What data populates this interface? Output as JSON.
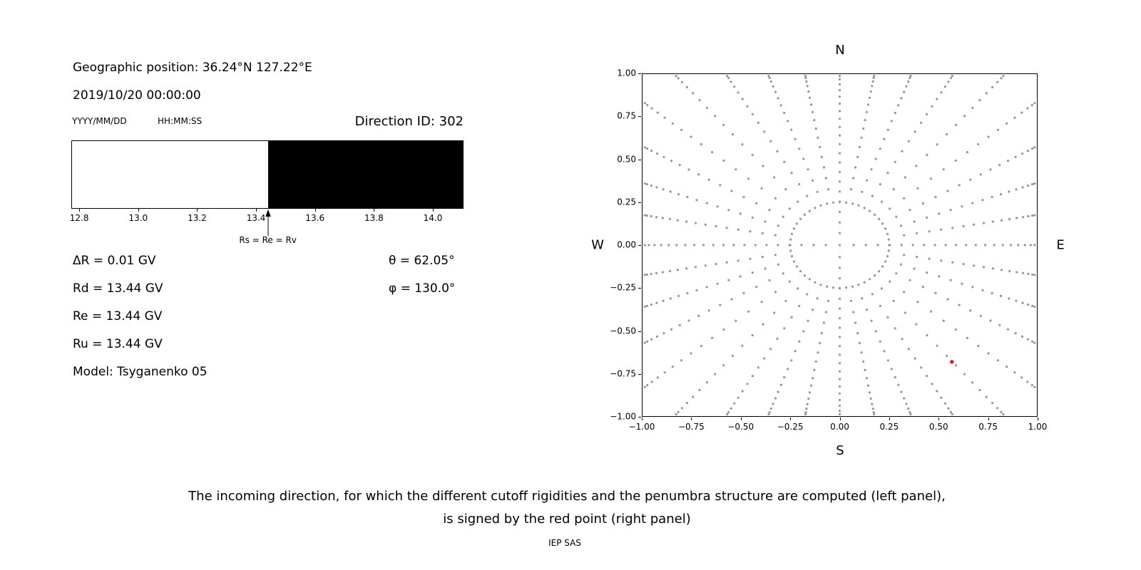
{
  "left_panel": {
    "geo_position": "Geographic position: 36.24°N 127.22°E",
    "datetime": "2019/10/20 00:00:00",
    "date_format_label": "YYYY/MM/DD",
    "time_format_label": "HH:MM:SS",
    "direction_id": "Direction ID: 302",
    "info_left": [
      "ΔR = 0.01 GV",
      "Rd = 13.44 GV",
      "Re = 13.44 GV",
      "Ru = 13.44 GV",
      "Model: Tsyganenko 05"
    ],
    "info_right": [
      "θ = 62.05°",
      "φ = 130.0°"
    ]
  },
  "caption": {
    "line1": "The incoming direction, for which the different cutoff rigidities and the penumbra structure are computed (left panel),",
    "line2": "is signed by the red point (right panel)",
    "credit": "IEP SAS"
  },
  "chart_data": [
    {
      "type": "bar",
      "x_range": [
        12.773,
        14.104
      ],
      "x_ticks": [
        12.8,
        13.0,
        13.2,
        13.4,
        13.6,
        13.8,
        14.0
      ],
      "segments": [
        {
          "start": 12.773,
          "end": 13.44,
          "color": "#ffffff"
        },
        {
          "start": 13.44,
          "end": 14.104,
          "color": "#000000"
        }
      ],
      "marker": {
        "x": 13.44,
        "label": "Rs = Re = Rv"
      }
    },
    {
      "type": "scatter",
      "xlim": [
        -1,
        1
      ],
      "ylim": [
        -1,
        1
      ],
      "x_ticks": [
        -1,
        -0.75,
        -0.5,
        -0.25,
        0,
        0.25,
        0.5,
        0.75,
        1
      ],
      "y_ticks": [
        1,
        0.75,
        0.5,
        0.25,
        0,
        -0.25,
        -0.5,
        -0.75,
        -1
      ],
      "compass": {
        "top": "N",
        "right": "E",
        "bottom": "S",
        "left": "W"
      },
      "dot_color": "#969696",
      "pattern": {
        "spoke_count": 36,
        "spoke_r_min": 0.33,
        "spoke_points": 16,
        "taper_exponent": 1.5,
        "cardinal_r_min": 0.07,
        "cardinal_points": 20,
        "cardinal_taper_exponent": 1.3,
        "ring_radius": 0.25,
        "ring_points": 48,
        "center_dot": true,
        "dot_radius_px": 1.6
      },
      "red_point": {
        "x": 0.567,
        "y": -0.68,
        "radius_px": 2.6,
        "color": "#ff0000"
      }
    }
  ]
}
